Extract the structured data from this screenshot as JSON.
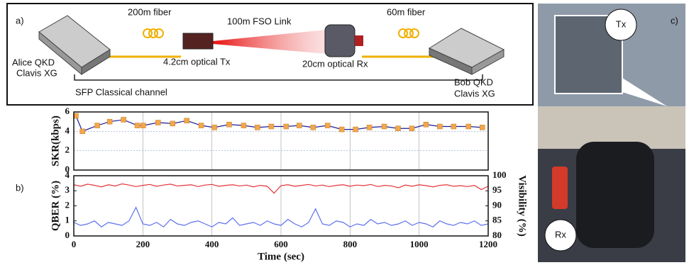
{
  "diagram": {
    "panel_label": "a)",
    "left_fiber": "200m fiber",
    "fso_link": "100m FSO Link",
    "right_fiber": "60m fiber",
    "alice": [
      "Alice QKD",
      "Clavis XG"
    ],
    "tx": "4.2cm optical Tx",
    "rx": "20cm optical Rx",
    "bob": [
      "Bob QKD",
      "Clavis XG"
    ],
    "classical": "SFP Classical channel"
  },
  "photo": {
    "panel_label": "c)",
    "tx": "Tx",
    "rx": "Rx"
  },
  "panel_b_label": "b)",
  "chart_data": [
    {
      "type": "line",
      "ylabel": "SKR(kbps)",
      "xlim": [
        0,
        1200
      ],
      "xticks": [
        0,
        200,
        400,
        600,
        800,
        1000,
        1200
      ],
      "ylim": [
        0,
        6
      ],
      "yticks": [
        0,
        2,
        4,
        6
      ],
      "grid": true,
      "x": [
        6,
        25,
        68,
        104,
        144,
        184,
        201,
        244,
        286,
        327,
        369,
        407,
        450,
        492,
        532,
        572,
        615,
        653,
        693,
        735,
        776,
        816,
        856,
        899,
        939,
        979,
        1020,
        1060,
        1100,
        1143,
        1183
      ],
      "series": [
        {
          "name": "SKR",
          "color": "#1c1c9c",
          "marker_color": "#f2a74b",
          "values": [
            5.6,
            4.0,
            4.6,
            5.0,
            5.2,
            4.6,
            4.6,
            4.9,
            4.8,
            5.1,
            4.6,
            4.4,
            4.7,
            4.6,
            4.4,
            4.5,
            4.5,
            4.6,
            4.4,
            4.6,
            4.2,
            4.2,
            4.4,
            4.5,
            4.3,
            4.3,
            4.7,
            4.5,
            4.5,
            4.5,
            4.4
          ]
        }
      ]
    },
    {
      "type": "line",
      "ylabel": "QBER (%)",
      "y2label": "Visibility (%)",
      "xlabel": "Time (sec)",
      "xlim": [
        0,
        1200
      ],
      "xticks": [
        0,
        200,
        400,
        600,
        800,
        1000,
        1200
      ],
      "ylim": [
        0,
        4
      ],
      "yticks": [
        0,
        1,
        2,
        3,
        4
      ],
      "y2lim": [
        80,
        100
      ],
      "y2ticks": [
        80,
        85,
        90,
        95,
        100
      ],
      "grid": true,
      "x": [
        0,
        20,
        40,
        60,
        80,
        100,
        120,
        140,
        160,
        180,
        200,
        220,
        240,
        260,
        280,
        300,
        320,
        340,
        360,
        380,
        400,
        420,
        440,
        460,
        480,
        500,
        520,
        540,
        560,
        580,
        600,
        620,
        640,
        660,
        680,
        700,
        720,
        740,
        760,
        780,
        800,
        820,
        840,
        860,
        880,
        900,
        920,
        940,
        960,
        980,
        1000,
        1020,
        1040,
        1060,
        1080,
        1100,
        1120,
        1140,
        1160,
        1180,
        1200
      ],
      "series": [
        {
          "name": "QBER",
          "color": "#5b6ff0",
          "values": [
            0.9,
            0.7,
            0.8,
            1.0,
            0.6,
            0.9,
            0.8,
            0.7,
            1.0,
            1.9,
            0.8,
            0.7,
            0.9,
            0.6,
            1.1,
            0.8,
            0.7,
            0.9,
            1.0,
            0.8,
            0.6,
            0.9,
            0.8,
            1.2,
            0.7,
            0.8,
            0.9,
            0.7,
            1.0,
            0.8,
            0.7,
            1.1,
            0.8,
            0.6,
            0.9,
            1.8,
            0.8,
            0.7,
            1.0,
            0.9,
            0.6,
            0.8,
            0.7,
            1.1,
            0.8,
            0.9,
            0.7,
            0.8,
            1.0,
            0.7,
            0.9,
            0.8,
            0.6,
            1.0,
            0.8,
            0.7,
            0.9,
            0.8,
            1.0,
            0.7,
            0.8
          ]
        },
        {
          "name": "Visibility",
          "axis": "y2",
          "color": "#e53338",
          "values": [
            97.0,
            96.5,
            97.2,
            96.8,
            96.3,
            97.0,
            96.6,
            97.3,
            96.9,
            96.4,
            96.8,
            97.1,
            96.5,
            96.9,
            97.2,
            96.6,
            96.8,
            97.0,
            96.4,
            96.9,
            97.1,
            96.5,
            96.8,
            97.0,
            96.6,
            96.9,
            96.3,
            96.8,
            96.5,
            94.2,
            96.7,
            97.0,
            96.5,
            96.8,
            97.1,
            96.6,
            96.9,
            96.4,
            96.8,
            97.0,
            96.5,
            96.9,
            96.7,
            97.1,
            96.4,
            96.8,
            96.6,
            96.0,
            96.9,
            96.5,
            97.0,
            96.7,
            96.3,
            96.8,
            97.0,
            96.5,
            96.7,
            96.4,
            96.8,
            95.4,
            96.5
          ]
        }
      ]
    }
  ]
}
